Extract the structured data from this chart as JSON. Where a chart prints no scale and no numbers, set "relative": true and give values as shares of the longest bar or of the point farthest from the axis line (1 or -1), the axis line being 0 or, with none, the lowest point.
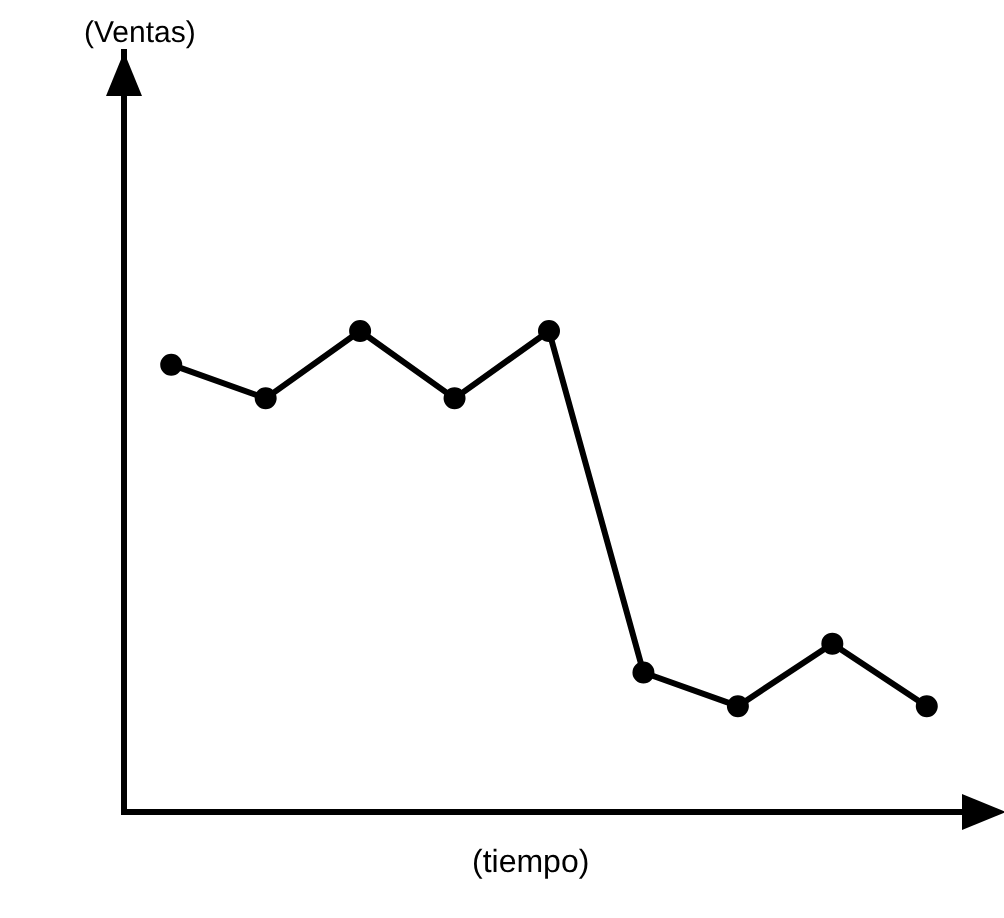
{
  "chart_data": {
    "type": "line",
    "relative": true,
    "xlabel": "(tiempo)",
    "annotations": [
      "(Ventas)"
    ],
    "categories": [
      null,
      null,
      null,
      null,
      null,
      null,
      null,
      null,
      null
    ],
    "series": [
      {
        "color": "#000000",
        "values": [
          0.93,
          0.86,
          1.0,
          0.86,
          1,
          0.29,
          0.22,
          0.35,
          0.22
        ]
      }
    ],
    "marker": "circle",
    "line_style": "solid",
    "grid": false,
    "legend": false
  }
}
